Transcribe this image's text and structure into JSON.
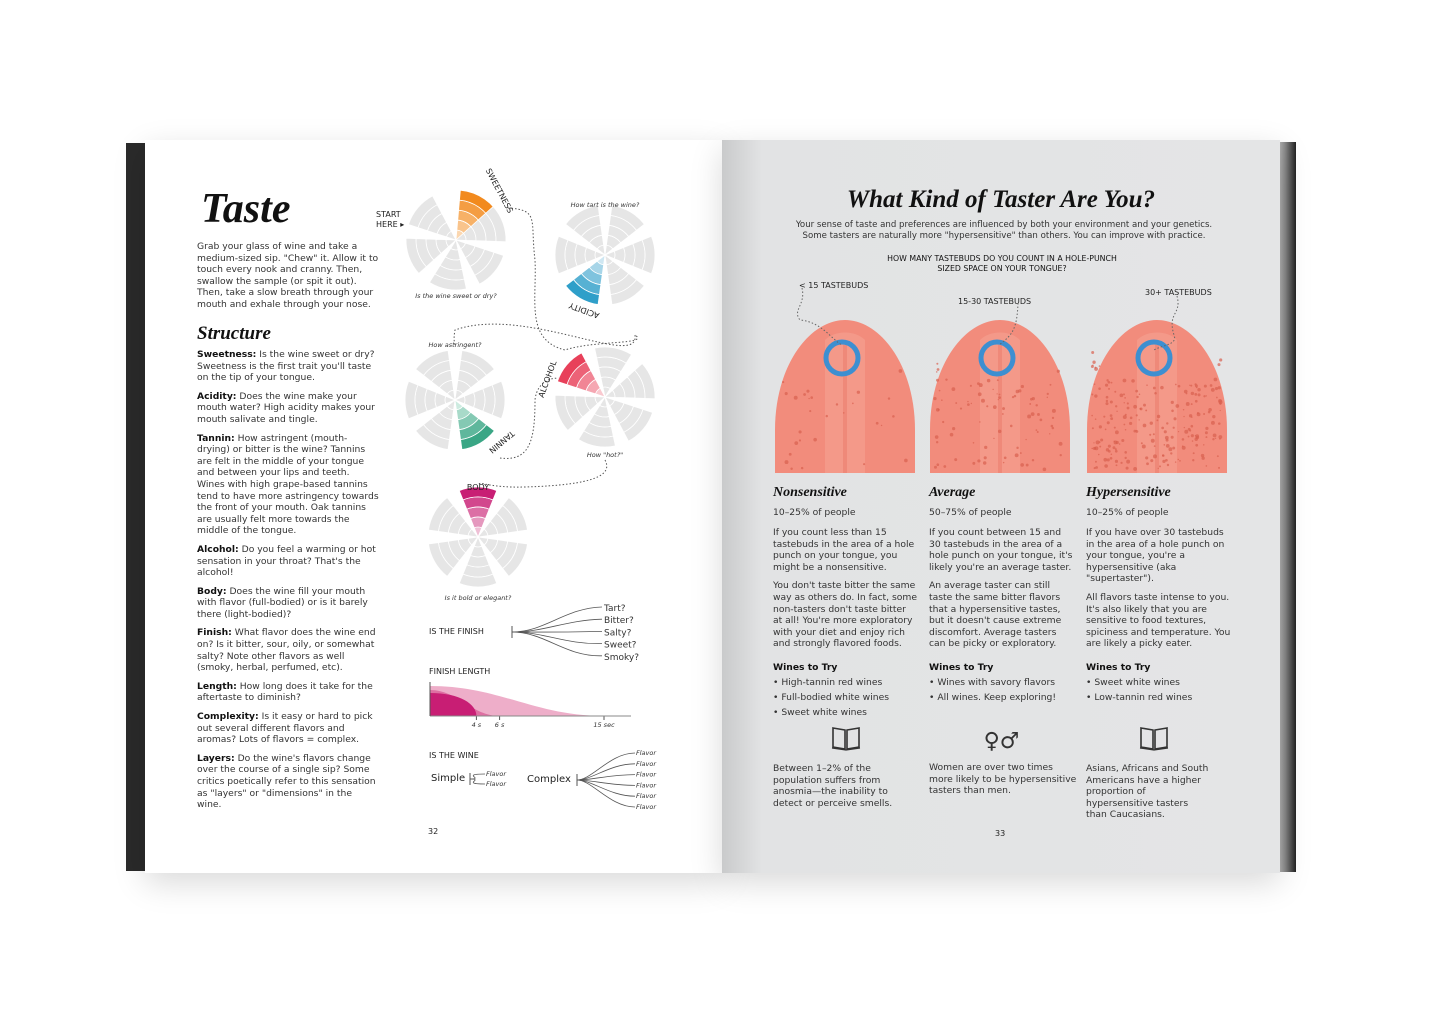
{
  "left_page": {
    "title": "Taste",
    "intro": "Grab your glass of wine and take a medium-sized sip. \"Chew\" it. Allow it to touch every nook and cranny. Then, swallow the sample (or spit it out). Then, take a slow breath through your mouth and exhale through your nose.",
    "section": "Structure",
    "terms": [
      {
        "term": "Sweetness:",
        "text": " Is the wine sweet or dry? Sweetness is the first trait you'll taste on the tip of your tongue."
      },
      {
        "term": "Acidity:",
        "text": " Does the wine make your mouth water? High acidity makes your mouth salivate and tingle."
      },
      {
        "term": "Tannin:",
        "text": " How astringent (mouth-drying) or bitter is the wine? Tannins are felt in the middle of your tongue and between your lips and teeth. Wines with high grape-based tannins tend to have more astringency towards the front of your mouth. Oak tannins are usually felt more towards the middle of the tongue."
      },
      {
        "term": "Alcohol:",
        "text": " Do you feel a warming or hot sensation in your throat? That's the alcohol!"
      },
      {
        "term": "Body:",
        "text": " Does the wine fill your mouth with flavor (full-bodied) or is it barely there (light-bodied)?"
      },
      {
        "term": "Finish:",
        "text": " What flavor does the wine end on? Is it bitter, sour, oily, or somewhat salty? Note other flavors as well (smoky, herbal, perfumed, etc)."
      },
      {
        "term": "Length:",
        "text": " How long does it take for the aftertaste to diminish?"
      },
      {
        "term": "Complexity:",
        "text": " Is it easy or hard to pick out several different flavors and aromas? Lots of flavors = complex."
      },
      {
        "term": "Layers:",
        "text": " Do the wine's flavors change over the course of a single sip? Some critics poetically refer to this sensation as \"layers\" or \"dimensions\" in the wine."
      }
    ],
    "start_here": [
      "START",
      "HERE ▸"
    ],
    "wheels": [
      {
        "label": "SWEETNESS",
        "question": "Is the wine sweet or dry?",
        "color": "#f28a1e",
        "light": "#fbd7b0"
      },
      {
        "label": "ACIDITY",
        "question": "How tart is the wine?",
        "color": "#2f9fc9",
        "light": "#cfe7f2"
      },
      {
        "label": "TANNIN",
        "question": "How astringent?",
        "color": "#3aa685",
        "light": "#cdebe0"
      },
      {
        "label": "ALCOHOL",
        "question": "How \"hot?\"",
        "color": "#e8405a",
        "light": "#f9c9cf"
      },
      {
        "label": "BODY",
        "question": "Is it bold or elegant?",
        "color": "#c81e74",
        "light": "#efc0d6"
      }
    ],
    "finish": {
      "label": "IS THE FINISH",
      "options": [
        "Tart?",
        "Bitter?",
        "Salty?",
        "Sweet?",
        "Smoky?"
      ]
    },
    "finish_length": {
      "label": "FINISH LENGTH",
      "ticks": [
        "4 s",
        "6 s",
        "15 sec"
      ],
      "values_sec": [
        4,
        6,
        15
      ],
      "colors": [
        "#c81e74",
        "#de6fa2",
        "#eeaec9"
      ]
    },
    "complexity": {
      "label": "IS THE WINE",
      "simple": "Simple",
      "complex": "Complex",
      "flavor": "Flavor",
      "simple_count": 2,
      "complex_count": 6
    },
    "page_number": "32"
  },
  "right_page": {
    "title": "What Kind of Taster Are You?",
    "intro": "Your sense of taste and preferences are influenced by both your environment and your genetics. Some tasters are naturally more \"hypersensitive\" than others. You can improve with practice.",
    "question": "HOW MANY TASTEBUDS DO YOU COUNT IN A HOLE-PUNCH SIZED SPACE ON YOUR TONGUE?",
    "tongue_color": "#f28c7c",
    "circle_color": "#3d8fd1",
    "tasters": [
      {
        "count": "< 15 TASTEBUDS",
        "name": "Nonsensitive",
        "pct": "10–25% of people",
        "p1": "If you count less than 15 tastebuds in the area of a hole punch on your tongue, you might be a nonsensitive.",
        "p2": "You don't taste bitter the same way as others do. In fact, some non-tasters don't taste bitter at all! You're more exploratory with your diet and enjoy rich and strongly flavored foods.",
        "wines_label": "Wines to Try",
        "wines": [
          "High-tannin red wines",
          "Full-bodied white wines",
          "Sweet white wines"
        ]
      },
      {
        "count": "15-30 TASTEBUDS",
        "name": "Average",
        "pct": "50–75% of people",
        "p1": "If you count between 15 and 30 tastebuds in the area of a hole punch on your tongue, it's likely you're an average taster.",
        "p2": "An average taster can still taste the same bitter flavors that a hypersensitive tastes, but it doesn't cause extreme discomfort. Average tasters can be picky or exploratory.",
        "wines_label": "Wines to Try",
        "wines": [
          "Wines with savory flavors",
          "All wines. Keep exploring!"
        ]
      },
      {
        "count": "30+ TASTEBUDS",
        "name": "Hypersensitive",
        "pct": "10–25% of people",
        "p1": "If you have over 30 tastebuds in the area of a hole punch on your tongue, you're a hypersensitive (aka \"supertaster\").",
        "p2": "All flavors taste intense to you. It's also likely that you are sensitive to food textures, spiciness and temperature. You are likely a picky eater.",
        "wines_label": "Wines to Try",
        "wines": [
          "Sweet white wines",
          "Low-tannin red wines"
        ]
      }
    ],
    "facts": [
      {
        "icon": "book-icon",
        "text": "Between 1–2% of the population suffers from anosmia—the inability to detect or perceive smells."
      },
      {
        "icon": "gender-symbols-icon",
        "text": "Women are over two times more likely to be hypersensitive tasters than men."
      },
      {
        "icon": "book-icon",
        "text": "Asians, Africans and South Americans have a higher proportion of hypersensitive tasters than Caucasians."
      }
    ],
    "page_number": "33"
  }
}
